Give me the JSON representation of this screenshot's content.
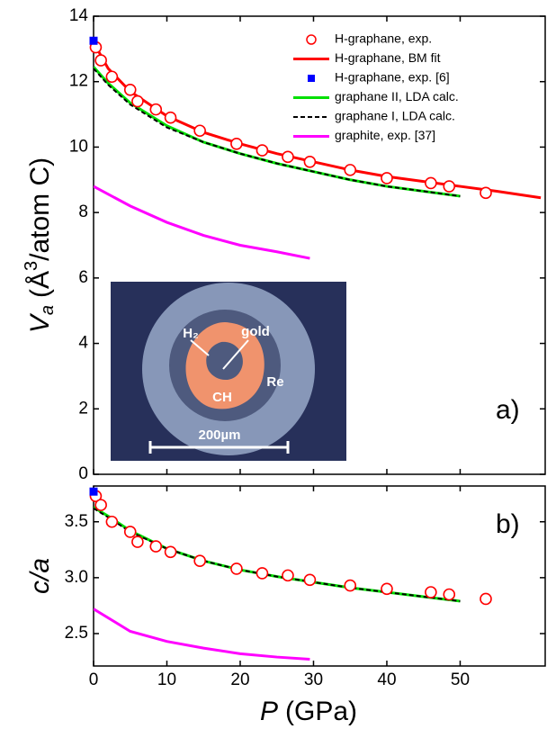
{
  "chart_data": [
    {
      "type": "line",
      "y_label": {
        "symbol": "V",
        "subscript": "a",
        "unit_open": "(Å",
        "superscript": "3",
        "unit_close": "/atom C)"
      },
      "panel_label": "a)",
      "xlim": [
        0,
        61.6
      ],
      "xticks": [
        0,
        10,
        20,
        30,
        40,
        50
      ],
      "ylim": [
        0,
        14
      ],
      "yticks": [
        0,
        2,
        4,
        6,
        8,
        10,
        12,
        14
      ],
      "legend": "upper right",
      "series": [
        {
          "name": "H-graphane, exp.",
          "mark": "open-circle",
          "color": "#ff0000",
          "x": [
            0.3,
            1,
            2.5,
            5,
            6,
            8.5,
            10.5,
            14.5,
            19.5,
            23,
            26.5,
            29.5,
            35,
            40,
            46,
            48.5,
            53.5
          ],
          "values": [
            13.05,
            12.65,
            12.15,
            11.75,
            11.4,
            11.15,
            10.9,
            10.5,
            10.1,
            9.9,
            9.7,
            9.55,
            9.3,
            9.05,
            8.9,
            8.8,
            8.6
          ]
        },
        {
          "name": "H-graphane, BM fit",
          "mark": "line",
          "color": "#ff0000",
          "x": [
            0,
            2,
            5,
            10,
            15,
            20,
            25,
            30,
            35,
            40,
            45,
            50,
            55,
            61
          ],
          "values": [
            13.2,
            12.4,
            11.7,
            10.95,
            10.45,
            10.1,
            9.8,
            9.55,
            9.3,
            9.1,
            8.95,
            8.8,
            8.65,
            8.45
          ]
        },
        {
          "name": "H-graphane, exp. [6]",
          "mark": "square",
          "color": "#0000ff",
          "x": [
            0
          ],
          "values": [
            13.25
          ]
        },
        {
          "name": "graphane II, LDA calc.",
          "mark": "line",
          "color": "#00e000",
          "x": [
            0,
            2,
            5,
            10,
            15,
            20,
            25,
            30,
            35,
            40,
            45,
            50
          ],
          "values": [
            12.45,
            11.95,
            11.35,
            10.65,
            10.15,
            9.8,
            9.5,
            9.25,
            9.0,
            8.8,
            8.65,
            8.5
          ]
        },
        {
          "name": "graphane I, LDA calc.",
          "mark": "dashed-line",
          "color": "#000000",
          "x": [
            0,
            2,
            5,
            10,
            15,
            20,
            25,
            30,
            35,
            40,
            45,
            50
          ],
          "values": [
            12.4,
            11.9,
            11.3,
            10.6,
            10.15,
            9.8,
            9.5,
            9.25,
            9.0,
            8.8,
            8.65,
            8.5
          ]
        },
        {
          "name": "graphite, exp. [37]",
          "mark": "line",
          "color": "#ff00ff",
          "x": [
            0,
            5,
            10,
            15,
            20,
            25,
            29.5
          ],
          "values": [
            8.8,
            8.2,
            7.7,
            7.3,
            7.0,
            6.8,
            6.6
          ]
        }
      ],
      "inset": {
        "labels": [
          "H₂",
          "gold",
          "CH",
          "Re",
          "200µm"
        ]
      }
    },
    {
      "type": "line",
      "y_label": "c/a",
      "x_label": {
        "symbol": "P",
        "unit": "(GPa)"
      },
      "panel_label": "b)",
      "xlim": [
        0,
        61.6
      ],
      "xticks": [
        0,
        10,
        20,
        30,
        40,
        50
      ],
      "ylim": [
        2.21,
        3.82
      ],
      "yticks": [
        2.5,
        {
          "value": 3,
          "label": "3.0"
        },
        3.5
      ],
      "series": [
        {
          "mark": "open-circle",
          "color": "#ff0000",
          "x": [
            0.3,
            1,
            2.5,
            5,
            6,
            8.5,
            10.5,
            14.5,
            19.5,
            23,
            26.5,
            29.5,
            35,
            40,
            46,
            48.5,
            53.5
          ],
          "values": [
            3.73,
            3.65,
            3.5,
            3.41,
            3.32,
            3.28,
            3.23,
            3.15,
            3.08,
            3.04,
            3.02,
            2.98,
            2.93,
            2.9,
            2.87,
            2.85,
            2.81
          ]
        },
        {
          "mark": "square",
          "color": "#0000ff",
          "x": [
            0
          ],
          "values": [
            3.77
          ]
        },
        {
          "mark": "line",
          "color": "#00e000",
          "x": [
            0,
            2,
            5,
            10,
            15,
            20,
            25,
            30,
            35,
            40,
            45,
            50
          ],
          "values": [
            3.63,
            3.55,
            3.42,
            3.26,
            3.15,
            3.07,
            3.01,
            2.96,
            2.91,
            2.87,
            2.83,
            2.79
          ]
        },
        {
          "mark": "dashed-line",
          "color": "#000000",
          "x": [
            0,
            2,
            5,
            10,
            15,
            20,
            25,
            30,
            35,
            40,
            45,
            50
          ],
          "values": [
            3.62,
            3.54,
            3.41,
            3.26,
            3.15,
            3.07,
            3.01,
            2.96,
            2.91,
            2.87,
            2.83,
            2.79
          ]
        },
        {
          "mark": "line",
          "color": "#ff00ff",
          "x": [
            0,
            5,
            10,
            15,
            20,
            25,
            29.5
          ],
          "values": [
            2.72,
            2.52,
            2.43,
            2.37,
            2.32,
            2.29,
            2.27
          ]
        }
      ]
    }
  ]
}
